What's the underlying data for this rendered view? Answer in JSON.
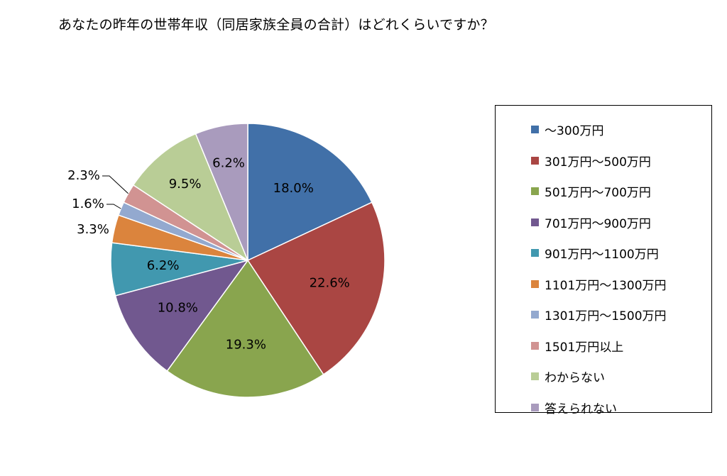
{
  "chart_data": {
    "type": "pie",
    "title": "あなたの昨年の世帯年収（同居家族全員の合計）はどれくらいですか？",
    "legend_position": "right",
    "slices": [
      {
        "label": "～300万円",
        "value": 18.0,
        "display": "18.0%",
        "color": "#4170A8"
      },
      {
        "label": "301万円～500万円",
        "value": 22.6,
        "display": "22.6%",
        "color": "#AA4643"
      },
      {
        "label": "501万円～700万円",
        "value": 19.3,
        "display": "19.3%",
        "color": "#89A54E"
      },
      {
        "label": "701万円～900万円",
        "value": 10.8,
        "display": "10.8%",
        "color": "#71588F"
      },
      {
        "label": "901万円～1100万円",
        "value": 6.2,
        "display": "6.2%",
        "color": "#4198AF"
      },
      {
        "label": "1101万円～1300万円",
        "value": 3.3,
        "display": "3.3%",
        "color": "#DB843D"
      },
      {
        "label": "1301万円～1500万円",
        "value": 1.6,
        "display": "1.6%",
        "color": "#93A9CF"
      },
      {
        "label": "1501万円以上",
        "value": 2.3,
        "display": "2.3%",
        "color": "#D19392"
      },
      {
        "label": "わからない",
        "value": 9.5,
        "display": "9.5%",
        "color": "#B9CD96"
      },
      {
        "label": "答えられない",
        "value": 6.2,
        "display": "6.2%",
        "color": "#A99BBD"
      }
    ]
  }
}
